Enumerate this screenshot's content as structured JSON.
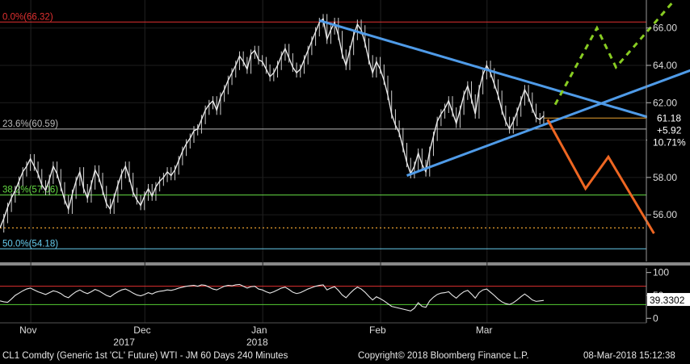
{
  "chart_data": [
    {
      "type": "candlestick-line",
      "title": "CL1 Comdty (Generic 1st 'CL' Future) WTI - JM 60 Days 240 Minutes",
      "ylim": [
        53.5,
        67.5
      ],
      "yticks": [
        56.0,
        58.0,
        60.0,
        62.0,
        64.0,
        66.0
      ],
      "ytick_labels": [
        "56.00",
        "58.00",
        "60.00",
        "62.00",
        "64.00",
        "66.00"
      ],
      "x_month_labels": [
        "Nov",
        "Dec",
        "Jan",
        "Feb",
        "Mar"
      ],
      "x_year_labels": [
        "2017",
        "2018"
      ],
      "x_month_days": [
        3,
        33,
        64,
        95,
        123
      ],
      "x_year_days": [
        33,
        68
      ],
      "x_range_days": [
        0,
        170
      ],
      "grid": true,
      "last_price": "61.18",
      "change": "+5.92",
      "change_pct": "10.71%",
      "fib_levels": [
        {
          "label": "0.0%(66.32)",
          "value": 66.32,
          "color": "#e03030"
        },
        {
          "label": "23.6%(60.59)",
          "value": 60.59,
          "color": "#bbbbbb"
        },
        {
          "label": "38.2%(57.06)",
          "value": 57.06,
          "color": "#66dd44"
        },
        {
          "label": "50.0%(54.18)",
          "value": 54.18,
          "color": "#66ccee"
        }
      ],
      "dotted_level": {
        "value": 55.3,
        "color": "#e8a030"
      },
      "current_level": {
        "value": 61.18,
        "color": "#e8a030"
      },
      "price_series": [
        [
          0,
          55.3
        ],
        [
          1,
          55.8
        ],
        [
          2,
          56.4
        ],
        [
          3,
          56.9
        ],
        [
          4,
          57.3
        ],
        [
          5,
          57.8
        ],
        [
          6,
          58.3
        ],
        [
          7,
          58.6
        ],
        [
          8,
          59.0
        ],
        [
          9,
          58.6
        ],
        [
          10,
          58.2
        ],
        [
          11,
          57.6
        ],
        [
          12,
          57.3
        ],
        [
          13,
          57.9
        ],
        [
          14,
          58.6
        ],
        [
          15,
          58.2
        ],
        [
          16,
          57.5
        ],
        [
          17,
          56.8
        ],
        [
          18,
          56.3
        ],
        [
          19,
          57.1
        ],
        [
          20,
          57.8
        ],
        [
          21,
          58.3
        ],
        [
          22,
          57.4
        ],
        [
          23,
          56.9
        ],
        [
          24,
          57.6
        ],
        [
          25,
          58.4
        ],
        [
          26,
          58.0
        ],
        [
          27,
          57.3
        ],
        [
          28,
          56.6
        ],
        [
          29,
          56.3
        ],
        [
          30,
          56.9
        ],
        [
          31,
          57.6
        ],
        [
          32,
          58.2
        ],
        [
          33,
          58.6
        ],
        [
          34,
          58.0
        ],
        [
          35,
          57.2
        ],
        [
          36,
          56.8
        ],
        [
          37,
          56.5
        ],
        [
          38,
          57.0
        ],
        [
          39,
          57.4
        ],
        [
          40,
          57.0
        ],
        [
          41,
          57.5
        ],
        [
          42,
          57.8
        ],
        [
          43,
          58.0
        ],
        [
          44,
          58.3
        ],
        [
          45,
          58.1
        ],
        [
          46,
          58.4
        ],
        [
          47,
          58.9
        ],
        [
          48,
          59.4
        ],
        [
          49,
          59.8
        ],
        [
          50,
          60.1
        ],
        [
          51,
          60.5
        ],
        [
          52,
          60.6
        ],
        [
          53,
          61.1
        ],
        [
          54,
          61.6
        ],
        [
          55,
          61.9
        ],
        [
          56,
          62.1
        ],
        [
          57,
          61.6
        ],
        [
          58,
          62.3
        ],
        [
          59,
          62.7
        ],
        [
          60,
          63.2
        ],
        [
          61,
          63.6
        ],
        [
          62,
          64.0
        ],
        [
          63,
          64.5
        ],
        [
          64,
          64.2
        ],
        [
          65,
          63.8
        ],
        [
          66,
          64.6
        ],
        [
          67,
          64.8
        ],
        [
          68,
          64.3
        ],
        [
          69,
          64.2
        ],
        [
          70,
          63.8
        ],
        [
          71,
          63.4
        ],
        [
          72,
          63.6
        ],
        [
          73,
          64.0
        ],
        [
          74,
          64.5
        ],
        [
          75,
          64.9
        ],
        [
          76,
          64.4
        ],
        [
          77,
          63.9
        ],
        [
          78,
          63.6
        ],
        [
          79,
          63.8
        ],
        [
          80,
          64.3
        ],
        [
          81,
          64.8
        ],
        [
          82,
          65.3
        ],
        [
          83,
          65.8
        ],
        [
          84,
          66.3
        ],
        [
          85,
          66.5
        ],
        [
          86,
          65.4
        ],
        [
          87,
          65.9
        ],
        [
          88,
          66.3
        ],
        [
          89,
          65.6
        ],
        [
          90,
          64.6
        ],
        [
          91,
          64.0
        ],
        [
          92,
          64.8
        ],
        [
          93,
          65.6
        ],
        [
          94,
          66.2
        ],
        [
          95,
          65.9
        ],
        [
          96,
          65.2
        ],
        [
          97,
          64.3
        ],
        [
          98,
          63.6
        ],
        [
          99,
          64.2
        ],
        [
          100,
          63.8
        ],
        [
          101,
          63.2
        ],
        [
          102,
          62.4
        ],
        [
          103,
          61.4
        ],
        [
          104,
          60.8
        ],
        [
          105,
          60.4
        ],
        [
          106,
          59.6
        ],
        [
          107,
          58.8
        ],
        [
          108,
          58.2
        ],
        [
          109,
          58.6
        ],
        [
          110,
          59.3
        ],
        [
          111,
          58.7
        ],
        [
          112,
          58.3
        ],
        [
          113,
          59.4
        ],
        [
          114,
          60.2
        ],
        [
          115,
          61.0
        ],
        [
          116,
          61.4
        ],
        [
          117,
          61.7
        ],
        [
          118,
          62.1
        ],
        [
          119,
          61.5
        ],
        [
          120,
          60.9
        ],
        [
          121,
          61.6
        ],
        [
          122,
          62.4
        ],
        [
          123,
          62.9
        ],
        [
          124,
          62.2
        ],
        [
          125,
          61.4
        ],
        [
          126,
          62.7
        ],
        [
          127,
          63.5
        ],
        [
          128,
          64.0
        ],
        [
          129,
          63.6
        ],
        [
          130,
          63.0
        ],
        [
          131,
          62.4
        ],
        [
          132,
          61.6
        ],
        [
          133,
          61.0
        ],
        [
          134,
          60.6
        ],
        [
          135,
          61.0
        ],
        [
          136,
          61.5
        ],
        [
          137,
          62.1
        ],
        [
          138,
          62.7
        ],
        [
          139,
          62.3
        ],
        [
          140,
          61.7
        ],
        [
          141,
          61.2
        ],
        [
          142,
          61.1
        ],
        [
          143,
          61.3
        ]
      ],
      "trendlines": [
        {
          "name": "upper-trendline",
          "color": "#4f9be8",
          "points": [
            [
              84,
              66.4
            ],
            [
              201,
              59.4
            ]
          ]
        },
        {
          "name": "lower-trendline",
          "color": "#4f9be8",
          "points": [
            [
              107,
              58.1
            ],
            [
              201,
              65.2
            ]
          ]
        }
      ],
      "projections": [
        {
          "name": "bullish-projection",
          "color": "#88cc22",
          "dash": true,
          "points": [
            [
              146,
              61.9
            ],
            [
              157,
              66.0
            ],
            [
              162,
              63.9
            ],
            [
              177,
              67.4
            ]
          ]
        },
        {
          "name": "bearish-projection",
          "color": "#ee6622",
          "dash": false,
          "points": [
            [
              144,
              61.1
            ],
            [
              154,
              57.4
            ],
            [
              160,
              59.1
            ],
            [
              172,
              55.0
            ]
          ]
        }
      ]
    },
    {
      "type": "line",
      "name": "rsi",
      "ylim": [
        -10,
        110
      ],
      "yticks": [
        0,
        50,
        100
      ],
      "ytick_labels": [
        "0",
        "50",
        "100"
      ],
      "upper_band": 70,
      "lower_band": 30,
      "last_value": "39.3302",
      "values": [
        38,
        36,
        35,
        42,
        50,
        55,
        60,
        64,
        66,
        62,
        58,
        55,
        52,
        56,
        60,
        58,
        54,
        48,
        45,
        52,
        58,
        62,
        57,
        54,
        58,
        63,
        60,
        55,
        50,
        47,
        53,
        58,
        62,
        64,
        60,
        55,
        51,
        49,
        52,
        56,
        53,
        57,
        59,
        60,
        62,
        61,
        63,
        66,
        68,
        70,
        71,
        72,
        70,
        73,
        72,
        68,
        64,
        62,
        66,
        70,
        72,
        71,
        73,
        74,
        70,
        66,
        69,
        70,
        64,
        62,
        58,
        55,
        58,
        62,
        66,
        68,
        63,
        57,
        54,
        56,
        60,
        64,
        67,
        70,
        72,
        73,
        62,
        66,
        69,
        61,
        51,
        45,
        54,
        62,
        68,
        64,
        57,
        48,
        40,
        47,
        43,
        38,
        32,
        26,
        24,
        22,
        20,
        18,
        16,
        22,
        34,
        26,
        24,
        38,
        46,
        52,
        55,
        56,
        58,
        50,
        44,
        52,
        58,
        61,
        53,
        44,
        56,
        62,
        64,
        57,
        50,
        42,
        36,
        32,
        30,
        34,
        40,
        47,
        53,
        47,
        40,
        37,
        38,
        39
      ]
    }
  ],
  "footer": {
    "left": "CL1 Comdty (Generic 1st 'CL' Future) WTI - JM 60 Days 240 Minutes",
    "center": "Copyright© 2018 Bloomberg Finance L.P.",
    "right": "08-Mar-2018 15:12:38"
  }
}
